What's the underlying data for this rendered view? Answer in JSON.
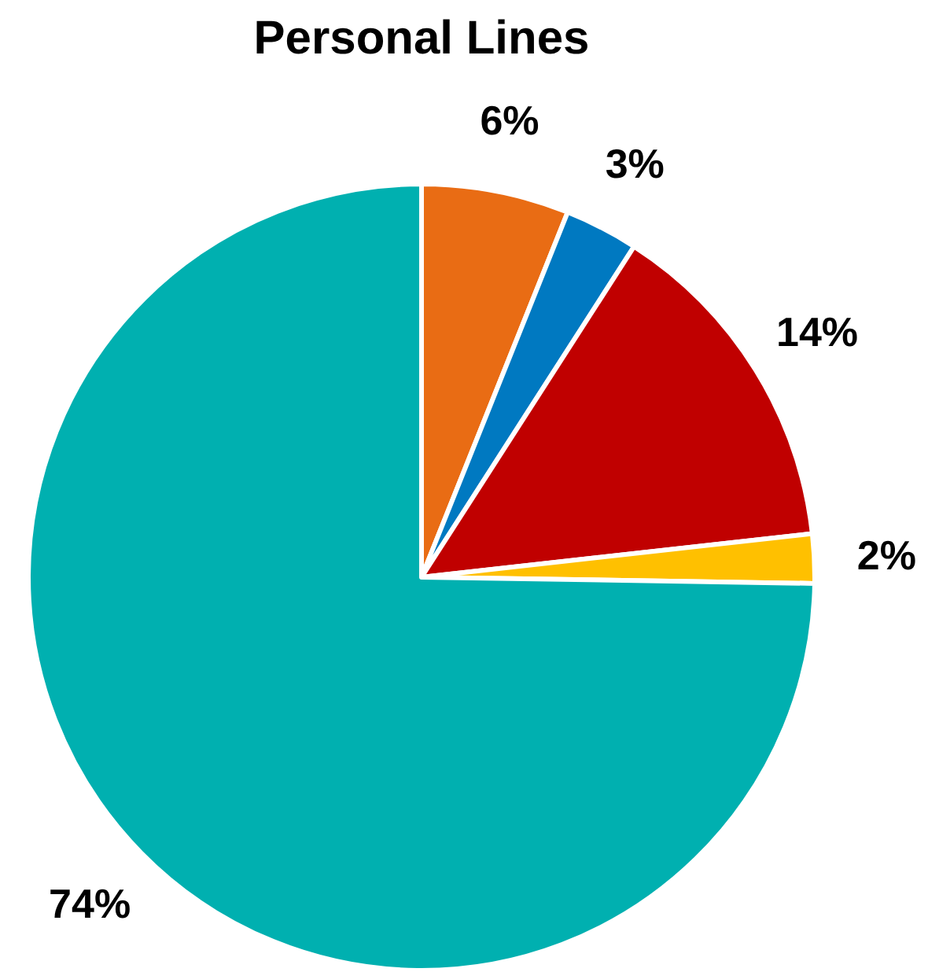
{
  "chart_data": {
    "type": "pie",
    "title": "Personal Lines",
    "categories": [
      null,
      null,
      null,
      null,
      null
    ],
    "values": [
      6,
      3,
      14,
      2,
      74
    ],
    "colors": [
      "#e96c14",
      "#0079c1",
      "#c00000",
      "#ffc000",
      "#00b0b0"
    ],
    "value_labels": [
      "6%",
      "3%",
      "14%",
      "2%",
      "74%"
    ]
  }
}
